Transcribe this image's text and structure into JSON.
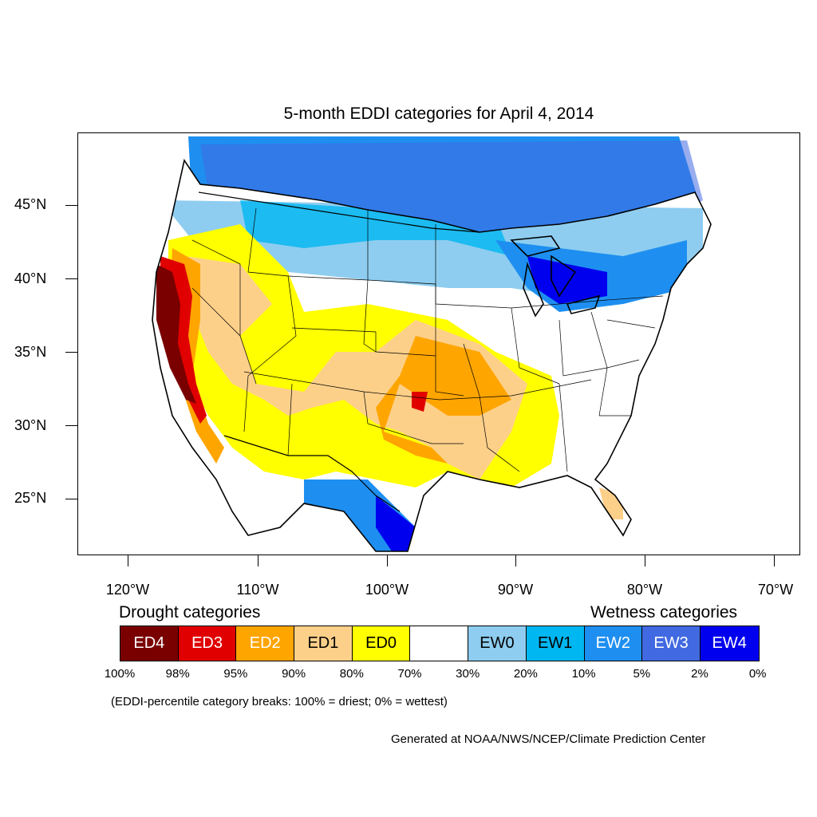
{
  "title": "5-month EDDI categories for April 4, 2014",
  "lat_labels": [
    "45°N",
    "40°N",
    "35°N",
    "30°N",
    "25°N"
  ],
  "lon_labels": [
    "120°W",
    "110°W",
    "100°W",
    "90°W",
    "80°W",
    "70°W"
  ],
  "legend": {
    "drought_title": "Drought categories",
    "wetness_title": "Wetness categories",
    "categories": [
      {
        "label": "ED4",
        "color": "#7a0000",
        "text_color": "#ffffff"
      },
      {
        "label": "ED3",
        "color": "#e00000",
        "text_color": "#ffffff"
      },
      {
        "label": "ED2",
        "color": "#ffa500",
        "text_color": "#ffffff"
      },
      {
        "label": "ED1",
        "color": "#fdd08a",
        "text_color": "#000000"
      },
      {
        "label": "ED0",
        "color": "#ffff00",
        "text_color": "#000000"
      },
      {
        "label": "",
        "color": "#ffffff",
        "text_color": "#000000"
      },
      {
        "label": "EW0",
        "color": "#8ecdf0",
        "text_color": "#000000"
      },
      {
        "label": "EW1",
        "color": "#00b7f1",
        "text_color": "#000000"
      },
      {
        "label": "EW2",
        "color": "#1e8ff0",
        "text_color": "#ffffff"
      },
      {
        "label": "EW3",
        "color": "#4169e1",
        "text_color": "#ffffff"
      },
      {
        "label": "EW4",
        "color": "#0000ee",
        "text_color": "#ffffff"
      }
    ],
    "breaks": [
      "100%",
      "98%",
      "95%",
      "90%",
      "80%",
      "70%",
      "30%",
      "20%",
      "10%",
      "5%",
      "2%",
      "0%"
    ]
  },
  "note": "(EDDI-percentile category breaks: 100% = driest; 0% = wettest)",
  "credit": "Generated at NOAA/NWS/NCEP/Climate Prediction Center"
}
